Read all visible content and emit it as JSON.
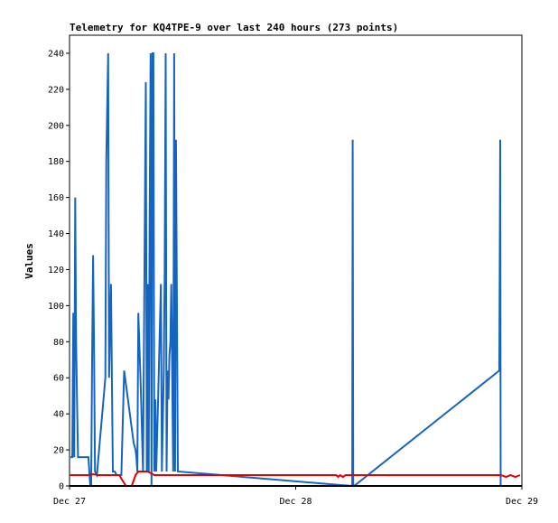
{
  "chart_data": {
    "type": "line",
    "title": "Telemetry for KQ4TPE-9 over last 240 hours (273 points)",
    "xlabel": "",
    "ylabel": "Values",
    "x_tick_labels": [
      "Dec 27",
      "Dec 28",
      "Dec 29"
    ],
    "xlim": [
      0,
      48
    ],
    "ylim": [
      0,
      250
    ],
    "y_ticks": [
      0,
      20,
      40,
      60,
      80,
      100,
      120,
      140,
      160,
      180,
      200,
      220,
      240
    ],
    "legend": "none",
    "grid": false,
    "series": [
      {
        "color": "#1565c0",
        "points": [
          [
            0.1,
            16
          ],
          [
            0.3,
            16
          ],
          [
            0.4,
            96
          ],
          [
            0.5,
            16
          ],
          [
            0.6,
            160
          ],
          [
            0.7,
            80
          ],
          [
            0.8,
            48
          ],
          [
            0.9,
            16
          ],
          [
            1.2,
            16
          ],
          [
            1.5,
            16
          ],
          [
            1.8,
            16
          ],
          [
            2.0,
            16
          ],
          [
            2.2,
            0
          ],
          [
            2.3,
            0
          ],
          [
            2.4,
            70
          ],
          [
            2.5,
            128
          ],
          [
            2.6,
            80
          ],
          [
            2.7,
            8
          ],
          [
            2.9,
            6
          ],
          [
            3.8,
            60
          ],
          [
            3.9,
            180
          ],
          [
            4.1,
            240
          ],
          [
            4.2,
            60
          ],
          [
            4.4,
            112
          ],
          [
            4.5,
            56
          ],
          [
            4.6,
            8
          ],
          [
            4.8,
            8
          ],
          [
            5.0,
            6
          ],
          [
            5.5,
            6
          ],
          [
            5.8,
            64
          ],
          [
            6.0,
            56
          ],
          [
            6.2,
            48
          ],
          [
            6.4,
            40
          ],
          [
            6.6,
            32
          ],
          [
            6.8,
            24
          ],
          [
            7.0,
            20
          ],
          [
            7.1,
            16
          ],
          [
            7.2,
            8
          ],
          [
            7.3,
            96
          ],
          [
            7.5,
            64
          ],
          [
            7.6,
            48
          ],
          [
            7.8,
            8
          ],
          [
            8.1,
            224
          ],
          [
            8.2,
            8
          ],
          [
            8.3,
            112
          ],
          [
            8.4,
            8
          ],
          [
            8.5,
            144
          ],
          [
            8.6,
            240
          ],
          [
            8.7,
            0
          ],
          [
            8.8,
            240
          ],
          [
            8.9,
            240
          ],
          [
            9.0,
            8
          ],
          [
            9.1,
            48
          ],
          [
            9.2,
            8
          ],
          [
            9.4,
            48
          ],
          [
            9.7,
            112
          ],
          [
            9.8,
            8
          ],
          [
            10.0,
            64
          ],
          [
            10.1,
            120
          ],
          [
            10.2,
            240
          ],
          [
            10.3,
            8
          ],
          [
            10.4,
            64
          ],
          [
            10.5,
            48
          ],
          [
            10.6,
            72
          ],
          [
            10.7,
            80
          ],
          [
            10.8,
            112
          ],
          [
            11.0,
            8
          ],
          [
            11.1,
            240
          ],
          [
            11.2,
            8
          ],
          [
            11.3,
            192
          ],
          [
            11.5,
            8
          ],
          [
            30.0,
            0
          ],
          [
            30.05,
            192
          ],
          [
            30.1,
            0
          ],
          [
            30.2,
            0
          ],
          [
            45.6,
            64
          ],
          [
            45.65,
            128
          ],
          [
            45.7,
            192
          ],
          [
            45.75,
            0
          ],
          [
            46.0,
            0
          ]
        ]
      },
      {
        "color": "#e00000",
        "points": [
          [
            0,
            6
          ],
          [
            2.0,
            6
          ],
          [
            2.5,
            6.5
          ],
          [
            3.0,
            6
          ],
          [
            4.0,
            6
          ],
          [
            5.0,
            6
          ],
          [
            5.3,
            6
          ],
          [
            5.5,
            4
          ],
          [
            6.0,
            0
          ],
          [
            6.6,
            0
          ],
          [
            7.0,
            6
          ],
          [
            7.3,
            8
          ],
          [
            7.8,
            8
          ],
          [
            8.3,
            8
          ],
          [
            9.0,
            6
          ],
          [
            10.0,
            6
          ],
          [
            12,
            6
          ],
          [
            20,
            6
          ],
          [
            28,
            6
          ],
          [
            28.3,
            6
          ],
          [
            28.5,
            5
          ],
          [
            28.7,
            6
          ],
          [
            29.0,
            5
          ],
          [
            29.3,
            6
          ],
          [
            30,
            6
          ],
          [
            35,
            6
          ],
          [
            40,
            6
          ],
          [
            45,
            6
          ],
          [
            45.8,
            6
          ],
          [
            46.3,
            5
          ],
          [
            46.8,
            6
          ],
          [
            47.3,
            5
          ],
          [
            47.8,
            6
          ]
        ]
      }
    ]
  }
}
